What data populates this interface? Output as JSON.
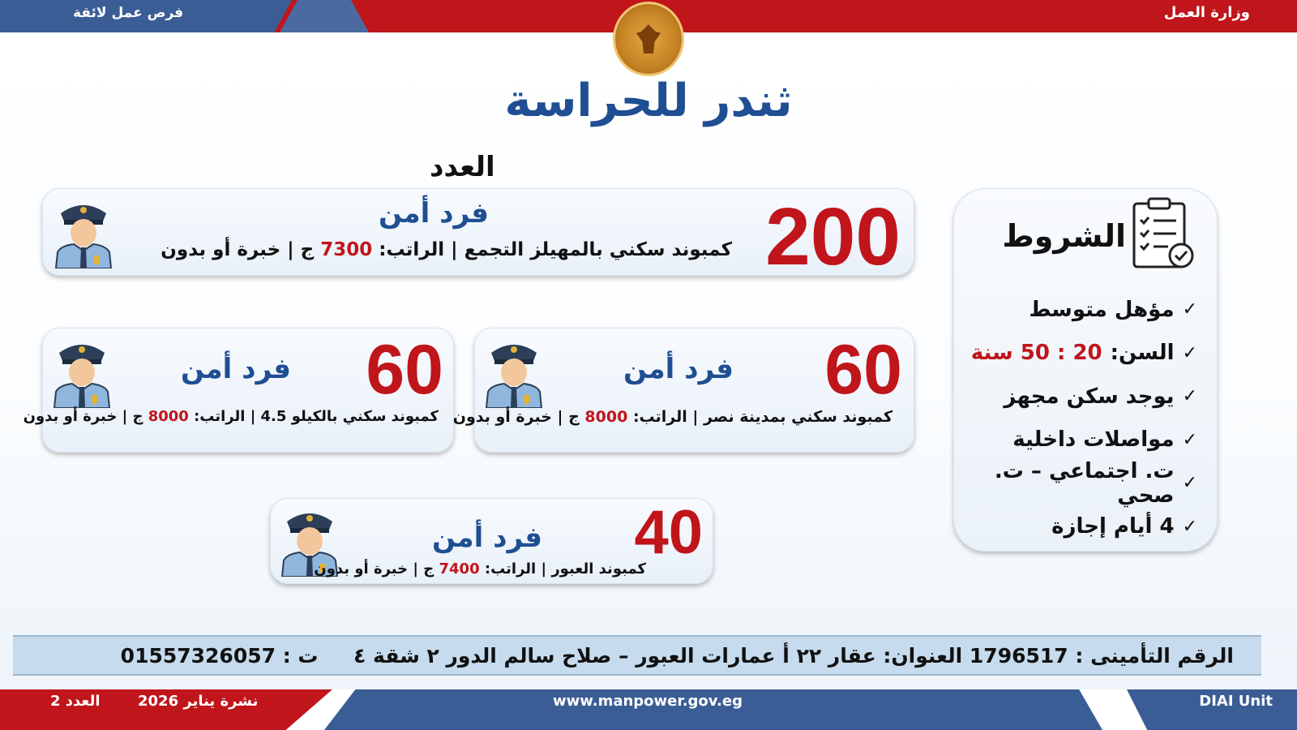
{
  "header": {
    "left_label": "فرص عمل لائقة",
    "right_label": "وزارة العمل",
    "seal_text": "Ministry of Labour"
  },
  "title": "ثندر للحراسة",
  "count_label": "العدد",
  "colors": {
    "red": "#c0151b",
    "blue": "#1f4e92",
    "bar_blue": "#3b5d95"
  },
  "jobs": [
    {
      "count": "200",
      "role": "فرد أمن",
      "location": "كمبوند سكني بالمهيلز التجمع",
      "salary_label": "الراتب:",
      "salary": "7300",
      "currency": "ج",
      "experience": "خبرة أو بدون",
      "icon": "security-guard-icon"
    },
    {
      "count": "60",
      "role": "فرد أمن",
      "location": "كمبوند سكني بمدينة نصر",
      "salary_label": "الراتب:",
      "salary": "8000",
      "currency": "ج",
      "experience": "خبرة أو بدون",
      "icon": "security-guard-icon"
    },
    {
      "count": "60",
      "role": "فرد أمن",
      "location": "كمبوند سكني بالكيلو 4.5",
      "salary_label": "الراتب:",
      "salary": "8000",
      "currency": "ج",
      "experience": "خبرة أو بدون",
      "icon": "security-guard-icon"
    },
    {
      "count": "40",
      "role": "فرد أمن",
      "location": "كمبوند العبور",
      "salary_label": "الراتب:",
      "salary": "7400",
      "currency": "ج",
      "experience": "خبرة أو بدون",
      "icon": "security-guard-icon"
    }
  ],
  "conditions": {
    "title": "الشروط",
    "icon": "clipboard-checklist-icon",
    "items": [
      {
        "text": "مؤهل متوسط"
      },
      {
        "text": "السن:",
        "highlight": "20 : 50 سنة"
      },
      {
        "text": "يوجد سكن مجهز"
      },
      {
        "text": "مواصلات داخلية"
      },
      {
        "text": "ت. اجتماعي – ت. صحي"
      },
      {
        "text": "4 أيام إجازة"
      }
    ]
  },
  "address_bar": "الرقم التأمينى : 1796517 العنوان: عقار ٢٢ أ عمارات العبور – صلاح سالم الدور ٢ شقة ٤     ت : 01557326057",
  "footer": {
    "issue": "العدد 2",
    "bulletin": "نشرة يناير 2026",
    "website": "www.manpower.gov.eg",
    "unit": "DIAI Unit"
  }
}
